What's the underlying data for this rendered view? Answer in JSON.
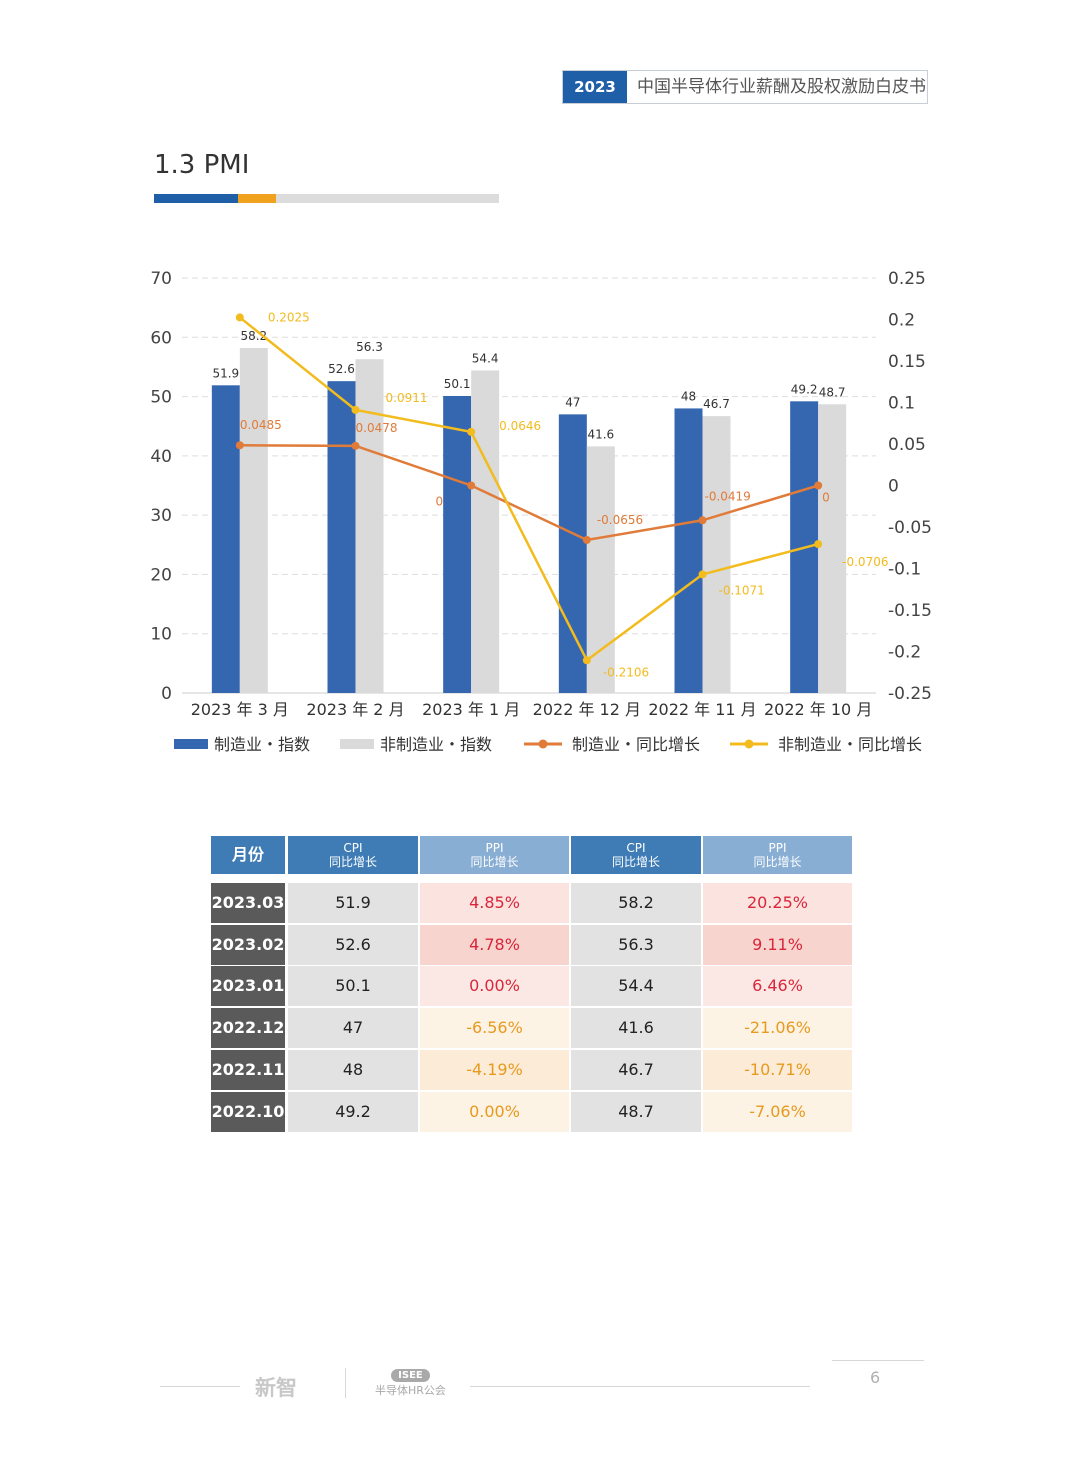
{
  "header": {
    "year": "2023",
    "title": "中国半导体行业薪酬及股权激励白皮书"
  },
  "section": {
    "title": "1.3 PMI"
  },
  "colors": {
    "manufacturing_bar": "#3567b0",
    "non_manufacturing_bar": "#dadada",
    "manufacturing_line": "#e07b39",
    "non_manufacturing_line": "#f2bb1e"
  },
  "chart_data": {
    "type": "bar+line",
    "categories": [
      "2023 年 3 月",
      "2023 年 2 月",
      "2023 年 1 月",
      "2022 年 12 月",
      "2022 年 11 月",
      "2022 年 10 月"
    ],
    "bars": [
      {
        "name": "制造业・指数",
        "values": [
          51.9,
          52.6,
          50.1,
          47,
          48,
          49.2
        ],
        "labels": [
          "51.9",
          "52.6",
          "50.1",
          "47",
          "48",
          "49.2"
        ]
      },
      {
        "name": "非制造业・指数",
        "values": [
          58.2,
          56.3,
          54.4,
          41.6,
          46.7,
          48.7
        ],
        "labels": [
          "58.2",
          "56.3",
          "54.4",
          "41.6",
          "46.7",
          "48.7"
        ]
      }
    ],
    "lines": [
      {
        "name": "制造业・同比增长",
        "values": [
          0.0485,
          0.0478,
          0,
          -0.0656,
          -0.0419,
          0
        ],
        "labels": [
          "0.0485",
          "0.0478",
          "0",
          "-0.0656",
          "-0.0419",
          "0"
        ]
      },
      {
        "name": "非制造业・同比增长",
        "values": [
          0.2025,
          0.0911,
          0.0646,
          -0.2106,
          -0.1071,
          -0.0706
        ],
        "labels": [
          "0.2025",
          "0.0911",
          "0.0646",
          "-0.2106",
          "-0.1071",
          "-0.0706"
        ]
      }
    ],
    "y_left": {
      "min": 0,
      "max": 70,
      "ticks": [
        "70",
        "60",
        "50",
        "40",
        "30",
        "20",
        "10",
        "0"
      ]
    },
    "y_right": {
      "min": -0.25,
      "max": 0.25,
      "ticks": [
        "0.25",
        "0.2",
        "0.15",
        "0.1",
        "0.05",
        "0",
        "-0.05",
        "-0.1",
        "-0.15",
        "-0.2",
        "-0.25"
      ]
    },
    "gridlines": "dashed horizontal",
    "legend_position": "bottom"
  },
  "table": {
    "headers": [
      {
        "line1": "月份",
        "line2": ""
      },
      {
        "line1": "CPI",
        "line2": "同比增长"
      },
      {
        "line1": "PPI",
        "line2": "同比增长"
      },
      {
        "line1": "CPI",
        "line2": "同比增长"
      },
      {
        "line1": "PPI",
        "line2": "同比增长"
      }
    ],
    "rows": [
      {
        "month": "2023.03",
        "v1": "51.9",
        "v2": "4.85%",
        "v3": "58.2",
        "v4": "20.25%"
      },
      {
        "month": "2023.02",
        "v1": "52.6",
        "v2": "4.78%",
        "v3": "56.3",
        "v4": "9.11%"
      },
      {
        "month": "2023.01",
        "v1": "50.1",
        "v2": "0.00%",
        "v3": "54.4",
        "v4": "6.46%"
      },
      {
        "month": "2022.12",
        "v1": "47",
        "v2": "-6.56%",
        "v3": "41.6",
        "v4": "-21.06%"
      },
      {
        "month": "2022.11",
        "v1": "48",
        "v2": "-4.19%",
        "v3": "46.7",
        "v4": "-10.71%"
      },
      {
        "month": "2022.10",
        "v1": "49.2",
        "v2": "0.00%",
        "v3": "48.7",
        "v4": "-7.06%"
      }
    ]
  },
  "footer": {
    "logo1": "新智",
    "logo2_pill": "ISEE",
    "logo2_text": "半导体HR公会",
    "page": "6"
  }
}
